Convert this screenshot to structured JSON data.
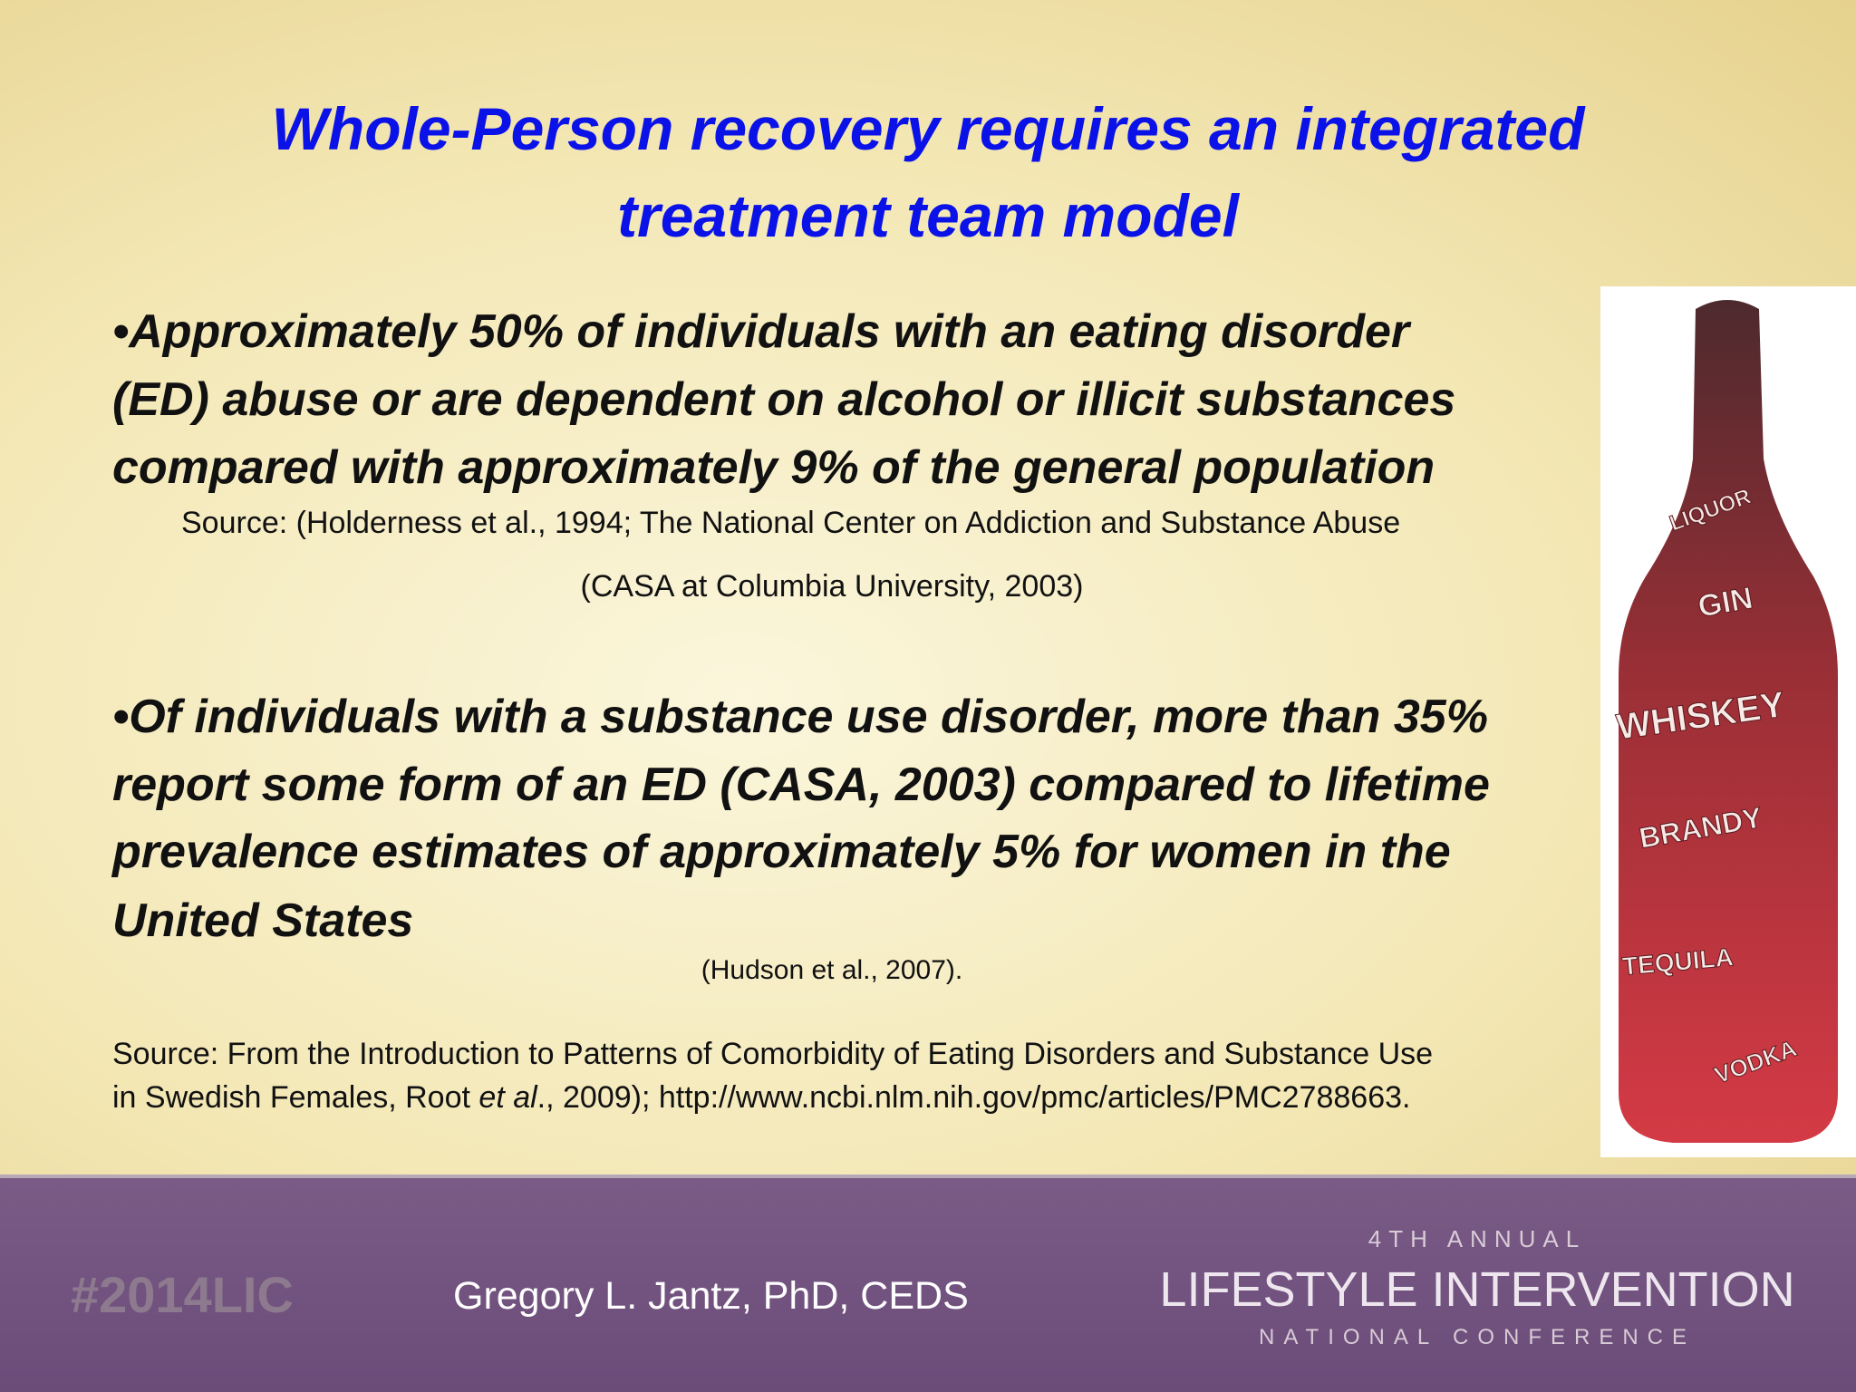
{
  "slide": {
    "title": [
      "Whole-Person recovery requires  an integrated",
      "treatment team model"
    ],
    "bullets": [
      {
        "marker": "•",
        "lines": [
          "Approximately 50% of individuals with an eating disorder",
          "(ED) abuse or are dependent on alcohol or illicit substances",
          "compared with approximately 9% of the general population"
        ],
        "citation": [
          "Source:  (Holderness et al., 1994; The National Center on Addiction and Substance Abuse",
          "(CASA at Columbia University, 2003)"
        ]
      },
      {
        "marker": "•",
        "lines": [
          "Of individuals with a substance use disorder, more than 35%",
          "report some form of an ED (CASA, 2003) compared to lifetime",
          "prevalence estimates of approximately 5% for women in the",
          "United States"
        ],
        "citation": [
          "(Hudson et al., 2007)."
        ]
      }
    ],
    "source": {
      "line1": "Source:  From the Introduction to Patterns of Comorbidity of Eating Disorders and Substance Use",
      "line2_before": "in Swedish Females, Root ",
      "line2_italic": "et al",
      "line2_after": "., 2009); http://www.ncbi.nlm.nih.gov/pmc/articles/PMC2788663."
    },
    "bottle_labels": [
      "LIQUOR",
      "GIN",
      "WHISKEY",
      "BRANDY",
      "TEQUILA",
      "VODKA"
    ],
    "footer": {
      "hashtag": "#2014LIC",
      "presenter": "Gregory L. Jantz, PhD, CEDS",
      "conference_top": "4TH ANNUAL",
      "conference_name": "LIFESTYLE INTERVENTION",
      "conference_bottom": "NATIONAL CONFERENCE"
    }
  }
}
